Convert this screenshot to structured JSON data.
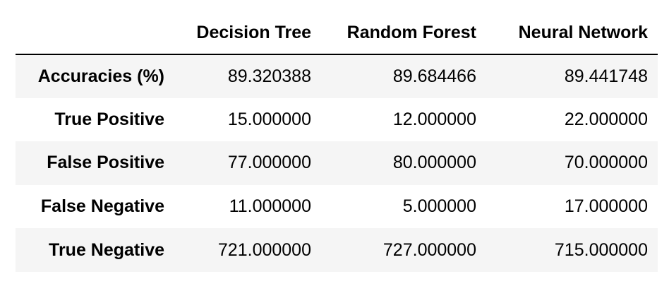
{
  "table": {
    "columns": [
      "",
      "Decision Tree",
      "Random Forest",
      "Neural Network"
    ],
    "rows": [
      {
        "label": "Accuracies (%)",
        "values": [
          "89.320388",
          "89.684466",
          "89.441748"
        ]
      },
      {
        "label": "True Positive",
        "values": [
          "15.000000",
          "12.000000",
          "22.000000"
        ]
      },
      {
        "label": "False Positive",
        "values": [
          "77.000000",
          "80.000000",
          "70.000000"
        ]
      },
      {
        "label": "False Negative",
        "values": [
          "11.000000",
          "5.000000",
          "17.000000"
        ]
      },
      {
        "label": "True Negative",
        "values": [
          "721.000000",
          "727.000000",
          "715.000000"
        ]
      }
    ]
  },
  "colors": {
    "stripe": "#f5f5f5",
    "header_rule": "#000000",
    "text": "#000000"
  }
}
